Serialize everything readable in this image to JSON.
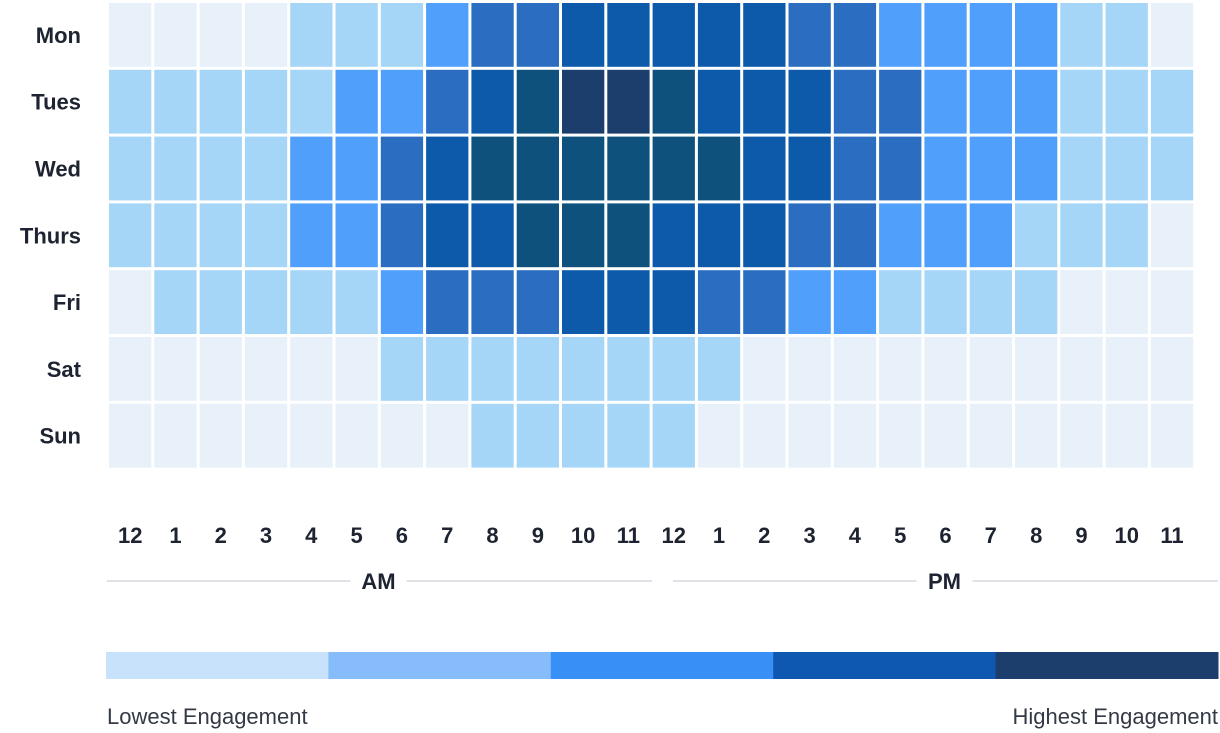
{
  "chart_data": {
    "type": "heatmap",
    "title": "",
    "rows": [
      "Mon",
      "Tues",
      "Wed",
      "Thurs",
      "Fri",
      "Sat",
      "Sun"
    ],
    "columns": [
      "12",
      "1",
      "2",
      "3",
      "4",
      "5",
      "6",
      "7",
      "8",
      "9",
      "10",
      "11",
      "12",
      "1",
      "2",
      "3",
      "4",
      "5",
      "6",
      "7",
      "8",
      "9",
      "10",
      "11"
    ],
    "periods": [
      {
        "label": "AM",
        "start": 0,
        "end": 11
      },
      {
        "label": "PM",
        "start": 12,
        "end": 23
      }
    ],
    "scale": {
      "min_label": "Lowest Engagement",
      "max_label": "Highest Engagement",
      "levels": 7,
      "level_colors": [
        "#e8f0fa",
        "#a5d6f8",
        "#509ffa",
        "#2b6dc1",
        "#0d5aab",
        "#0f517d",
        "#1b3e6c"
      ]
    },
    "values": [
      [
        0,
        0,
        0,
        0,
        1,
        1,
        1,
        2,
        3,
        3,
        4,
        4,
        4,
        4,
        4,
        3,
        3,
        2,
        2,
        2,
        2,
        1,
        1,
        0
      ],
      [
        1,
        1,
        1,
        1,
        1,
        2,
        2,
        3,
        4,
        5,
        6,
        6,
        5,
        4,
        4,
        4,
        3,
        3,
        2,
        2,
        2,
        1,
        1,
        1
      ],
      [
        1,
        1,
        1,
        1,
        2,
        2,
        3,
        4,
        5,
        5,
        5,
        5,
        5,
        5,
        4,
        4,
        3,
        3,
        2,
        2,
        2,
        1,
        1,
        1
      ],
      [
        1,
        1,
        1,
        1,
        2,
        2,
        3,
        4,
        4,
        5,
        5,
        5,
        4,
        4,
        4,
        3,
        3,
        2,
        2,
        2,
        1,
        1,
        1,
        0
      ],
      [
        0,
        1,
        1,
        1,
        1,
        1,
        2,
        3,
        3,
        3,
        4,
        4,
        4,
        3,
        3,
        2,
        2,
        1,
        1,
        1,
        1,
        0,
        0,
        0
      ],
      [
        0,
        0,
        0,
        0,
        0,
        0,
        1,
        1,
        1,
        1,
        1,
        1,
        1,
        1,
        0,
        0,
        0,
        0,
        0,
        0,
        0,
        0,
        0,
        0
      ],
      [
        0,
        0,
        0,
        0,
        0,
        0,
        0,
        0,
        1,
        1,
        1,
        1,
        1,
        0,
        0,
        0,
        0,
        0,
        0,
        0,
        0,
        0,
        0,
        0
      ]
    ],
    "legend_bar_colors": [
      "#c9e2fb",
      "#87bcfa",
      "#3890f7",
      "#0f58b2",
      "#1b3e6c"
    ],
    "axis_rule_color": "#dfe3e8",
    "label_color": "#1d2330",
    "grid": false,
    "legend": "bottom"
  }
}
